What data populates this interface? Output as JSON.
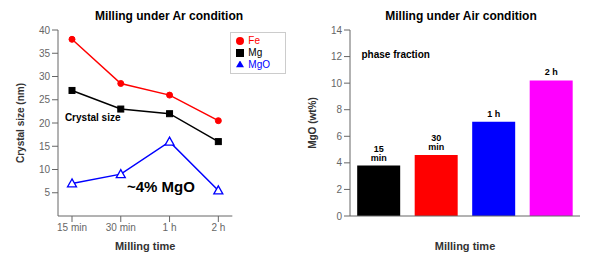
{
  "chart_data": [
    {
      "type": "line",
      "title": "Milling under Ar condition",
      "xlabel": "Milling time",
      "ylabel": "Crystal size (nm)",
      "categories": [
        "15 min",
        "30 min",
        "1 h",
        "2 h"
      ],
      "series": [
        {
          "name": "Mg",
          "color": "black",
          "marker": "square",
          "values": [
            27,
            23,
            22,
            16
          ]
        },
        {
          "name": "MgO",
          "color": "blue",
          "marker": "open-triangle",
          "values": [
            7,
            9,
            16,
            5.5
          ]
        },
        {
          "name": "Fe",
          "color": "red",
          "marker": "circle",
          "values": [
            38,
            28.5,
            26,
            20.5
          ]
        }
      ],
      "ylim": [
        0,
        40
      ],
      "yticks": [
        5,
        10,
        15,
        20,
        25,
        30,
        35,
        40
      ],
      "legend": "upper right",
      "grid": false,
      "annotations": [
        "Crystal size",
        "~4% MgO"
      ]
    },
    {
      "type": "bar",
      "title": "Milling under Air condition",
      "xlabel": "Milling time",
      "ylabel": "MgO (wt%)",
      "categories": [
        "15 min",
        "30 min",
        "1 h",
        "2 h"
      ],
      "values": [
        3.8,
        4.6,
        7.1,
        10.2
      ],
      "colors": [
        "black",
        "red",
        "blue",
        "magenta"
      ],
      "ylim": [
        0,
        14
      ],
      "yticks": [
        0,
        2,
        4,
        6,
        8,
        10,
        12,
        14
      ],
      "tick_labels": "y",
      "grid": false,
      "annotations": [
        "phase fraction"
      ]
    }
  ]
}
